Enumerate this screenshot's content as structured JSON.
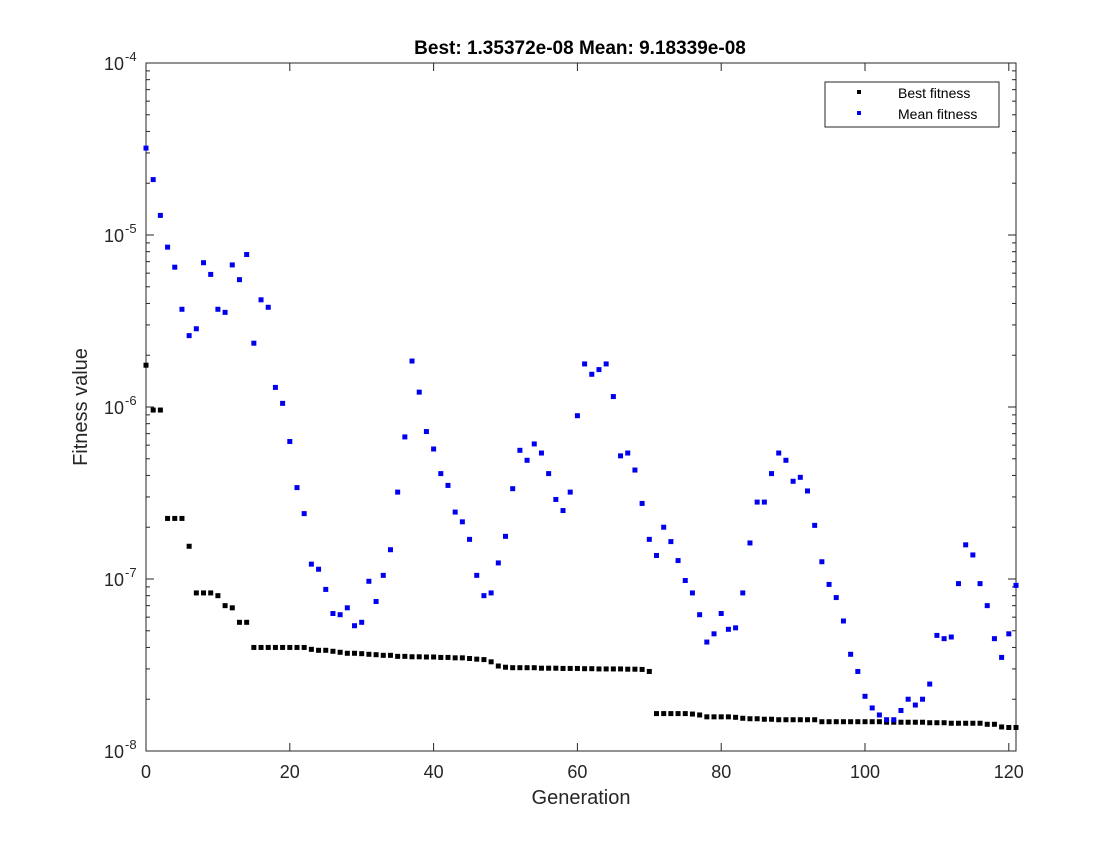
{
  "colors": {
    "best": "#000000",
    "mean": "#0000ee",
    "axis": "#262626"
  },
  "chart_data": {
    "type": "scatter",
    "title": "Best: 1.35372e-08 Mean: 9.18339e-08",
    "xlabel": "Generation",
    "ylabel": "Fitness value",
    "xlim": [
      0,
      121
    ],
    "ylim": [
      1e-08,
      0.0001
    ],
    "yscale": "log",
    "grid": false,
    "legend_position": "top-right",
    "x_ticks": [
      {
        "value": 0,
        "label": "0"
      },
      {
        "value": 20,
        "label": "20"
      },
      {
        "value": 40,
        "label": "40"
      },
      {
        "value": 60,
        "label": "60"
      },
      {
        "value": 80,
        "label": "80"
      },
      {
        "value": 100,
        "label": "100"
      },
      {
        "value": 120,
        "label": "120"
      }
    ],
    "y_ticks": [
      {
        "value": 1e-08,
        "base": "10",
        "exp": "-8"
      },
      {
        "value": 1e-07,
        "base": "10",
        "exp": "-7"
      },
      {
        "value": 1e-06,
        "base": "10",
        "exp": "-6"
      },
      {
        "value": 1e-05,
        "base": "10",
        "exp": "-5"
      },
      {
        "value": 0.0001,
        "base": "10",
        "exp": "-4"
      }
    ],
    "x": [
      0,
      1,
      2,
      3,
      4,
      5,
      6,
      7,
      8,
      9,
      10,
      11,
      12,
      13,
      14,
      15,
      16,
      17,
      18,
      19,
      20,
      21,
      22,
      23,
      24,
      25,
      26,
      27,
      28,
      29,
      30,
      31,
      32,
      33,
      34,
      35,
      36,
      37,
      38,
      39,
      40,
      41,
      42,
      43,
      44,
      45,
      46,
      47,
      48,
      49,
      50,
      51,
      52,
      53,
      54,
      55,
      56,
      57,
      58,
      59,
      60,
      61,
      62,
      63,
      64,
      65,
      66,
      67,
      68,
      69,
      70,
      71,
      72,
      73,
      74,
      75,
      76,
      77,
      78,
      79,
      80,
      81,
      82,
      83,
      84,
      85,
      86,
      87,
      88,
      89,
      90,
      91,
      92,
      93,
      94,
      95,
      96,
      97,
      98,
      99,
      100,
      101,
      102,
      103,
      104,
      105,
      106,
      107,
      108,
      109,
      110,
      111,
      112,
      113,
      114,
      115,
      116,
      117,
      118,
      119,
      120,
      121
    ],
    "series": [
      {
        "name": "Best fitness",
        "color": "#000000",
        "values": [
          1.75e-06,
          9.6e-07,
          9.6e-07,
          2.25e-07,
          2.25e-07,
          2.25e-07,
          1.55e-07,
          8.3e-08,
          8.3e-08,
          8.3e-08,
          8e-08,
          7e-08,
          6.8e-08,
          5.6e-08,
          5.6e-08,
          4e-08,
          4e-08,
          4e-08,
          4e-08,
          4e-08,
          4e-08,
          4e-08,
          4e-08,
          3.9e-08,
          3.85e-08,
          3.85e-08,
          3.8e-08,
          3.75e-08,
          3.7e-08,
          3.7e-08,
          3.68e-08,
          3.65e-08,
          3.63e-08,
          3.6e-08,
          3.6e-08,
          3.55e-08,
          3.55e-08,
          3.53e-08,
          3.53e-08,
          3.52e-08,
          3.52e-08,
          3.5e-08,
          3.5e-08,
          3.48e-08,
          3.48e-08,
          3.45e-08,
          3.42e-08,
          3.4e-08,
          3.3e-08,
          3.12e-08,
          3.07e-08,
          3.05e-08,
          3.05e-08,
          3.05e-08,
          3.05e-08,
          3.03e-08,
          3.03e-08,
          3.03e-08,
          3.02e-08,
          3.02e-08,
          3.02e-08,
          3.01e-08,
          3.01e-08,
          3e-08,
          3e-08,
          3e-08,
          3e-08,
          2.99e-08,
          2.99e-08,
          2.98e-08,
          2.9e-08,
          1.65e-08,
          1.65e-08,
          1.65e-08,
          1.65e-08,
          1.65e-08,
          1.64e-08,
          1.62e-08,
          1.58e-08,
          1.58e-08,
          1.58e-08,
          1.58e-08,
          1.57e-08,
          1.55e-08,
          1.54e-08,
          1.54e-08,
          1.53e-08,
          1.53e-08,
          1.52e-08,
          1.52e-08,
          1.52e-08,
          1.52e-08,
          1.52e-08,
          1.52e-08,
          1.48e-08,
          1.48e-08,
          1.48e-08,
          1.48e-08,
          1.48e-08,
          1.48e-08,
          1.48e-08,
          1.48e-08,
          1.48e-08,
          1.47e-08,
          1.47e-08,
          1.47e-08,
          1.47e-08,
          1.47e-08,
          1.47e-08,
          1.46e-08,
          1.46e-08,
          1.46e-08,
          1.45e-08,
          1.45e-08,
          1.45e-08,
          1.45e-08,
          1.45e-08,
          1.43e-08,
          1.43e-08,
          1.38e-08,
          1.37e-08,
          1.37e-08
        ]
      },
      {
        "name": "Mean fitness",
        "color": "#0000ee",
        "values": [
          3.2e-05,
          2.1e-05,
          1.3e-05,
          8.5e-06,
          6.5e-06,
          3.7e-06,
          2.6e-06,
          2.85e-06,
          6.9e-06,
          5.9e-06,
          3.7e-06,
          3.55e-06,
          6.7e-06,
          5.5e-06,
          7.7e-06,
          2.35e-06,
          4.2e-06,
          3.8e-06,
          1.3e-06,
          1.05e-06,
          6.3e-07,
          3.4e-07,
          2.4e-07,
          1.22e-07,
          1.14e-07,
          8.7e-08,
          6.3e-08,
          6.2e-08,
          6.8e-08,
          5.35e-08,
          5.6e-08,
          9.7e-08,
          7.4e-08,
          1.05e-07,
          1.48e-07,
          3.2e-07,
          6.7e-07,
          1.85e-06,
          1.22e-06,
          7.2e-07,
          5.7e-07,
          4.1e-07,
          3.5e-07,
          2.45e-07,
          2.15e-07,
          1.7e-07,
          1.05e-07,
          8e-08,
          8.3e-08,
          1.24e-07,
          1.77e-07,
          3.35e-07,
          5.6e-07,
          4.9e-07,
          6.1e-07,
          5.4e-07,
          4.1e-07,
          2.9e-07,
          2.5e-07,
          3.2e-07,
          8.9e-07,
          1.78e-06,
          1.55e-06,
          1.65e-06,
          1.78e-06,
          1.15e-06,
          5.2e-07,
          5.4e-07,
          4.3e-07,
          2.75e-07,
          1.7e-07,
          1.37e-07,
          2e-07,
          1.65e-07,
          1.28e-07,
          9.8e-08,
          8.3e-08,
          6.2e-08,
          4.3e-08,
          4.8e-08,
          6.3e-08,
          5.1e-08,
          5.2e-08,
          8.3e-08,
          1.62e-07,
          2.8e-07,
          2.8e-07,
          4.1e-07,
          5.4e-07,
          4.9e-07,
          3.7e-07,
          3.9e-07,
          3.25e-07,
          2.05e-07,
          1.26e-07,
          9.3e-08,
          7.8e-08,
          5.7e-08,
          3.65e-08,
          2.9e-08,
          2.08e-08,
          1.78e-08,
          1.62e-08,
          1.52e-08,
          1.52e-08,
          1.72e-08,
          2e-08,
          1.85e-08,
          2e-08,
          2.45e-08,
          4.7e-08,
          4.5e-08,
          4.6e-08,
          9.4e-08,
          1.58e-07,
          1.38e-07,
          9.4e-08,
          7e-08,
          4.5e-08,
          3.5e-08,
          4.8e-08,
          9.18e-08
        ]
      }
    ]
  }
}
